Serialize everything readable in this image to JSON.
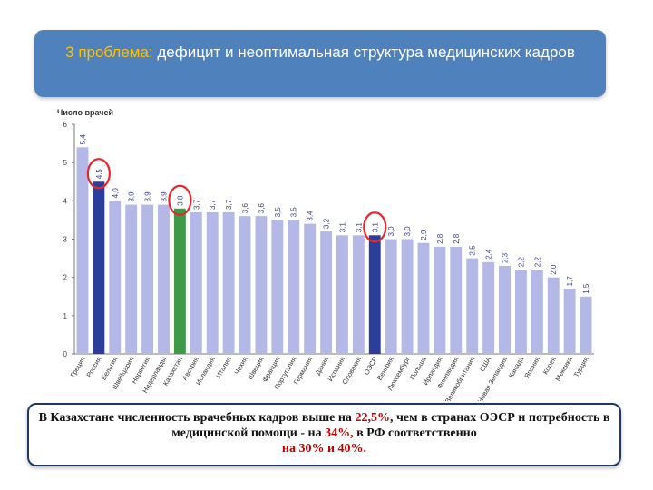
{
  "slide": {
    "title_prefix": "3 проблема:",
    "title_rest": " дефицит и неоптимальная структура медицинских кадров",
    "note": {
      "part1": "В Казахстане численность врачебных кадров выше на ",
      "pct1": "22,5%",
      "part2": ", чем в странах ОЭСР и потребность в медицинской помощи - на ",
      "pct2": "34%,",
      "part3": " в  РФ соответственно",
      "pct3": "на 30% и 40%."
    }
  },
  "chart_data": {
    "type": "bar",
    "title": "Число врачей",
    "ylim": [
      0,
      6
    ],
    "yticks": [
      "0",
      "1",
      "2",
      "3",
      "4",
      "5",
      "6"
    ],
    "grid": false,
    "categories": [
      "Греция",
      "Россия",
      "Бельгия",
      "Швейцария",
      "Норвегия",
      "Нидерланды",
      "Казахстан",
      "Австрия",
      "Исландия",
      "Италия",
      "Чехия",
      "Швеция",
      "Франция",
      "Португалия",
      "Германия",
      "Дания",
      "Испания",
      "Словакия",
      "ОЭСР",
      "Венгрия",
      "Люксембург",
      "Польша",
      "Ирландия",
      "Финляндия",
      "Великобритания",
      "США",
      "Новая Зеландия",
      "Канада",
      "Япония",
      "Корея",
      "Мексика",
      "Турция"
    ],
    "values": [
      5.4,
      4.5,
      4.0,
      3.9,
      3.9,
      3.9,
      3.8,
      3.7,
      3.7,
      3.7,
      3.6,
      3.6,
      3.5,
      3.5,
      3.4,
      3.2,
      3.1,
      3.1,
      3.1,
      3.0,
      3.0,
      2.9,
      2.8,
      2.8,
      2.5,
      2.4,
      2.3,
      2.2,
      2.2,
      2.0,
      1.7,
      1.5
    ],
    "value_labels": [
      "5,4",
      "4,5",
      "4,0",
      "3,9",
      "3,9",
      "3,9",
      "3,8",
      "3,7",
      "3,7",
      "3,7",
      "3,6",
      "3,6",
      "3,5",
      "3,5",
      "3,4",
      "3,2",
      "3,1",
      "3,1",
      "3,1",
      "3,0",
      "3,0",
      "2,9",
      "2,8",
      "2,8",
      "2,5",
      "2,4",
      "2,3",
      "2,2",
      "2,2",
      "2,0",
      "1,7",
      "1,5"
    ],
    "colors": {
      "default": "#b4b8e6",
      "russia": "#2b3e9c",
      "kazakhstan": "#3f9a48",
      "oecd": "#2b3e9c",
      "circle": "#e8262b"
    },
    "highlight": {
      "Россия": "russia",
      "Казахстан": "kazakhstan",
      "ОЭСР": "oecd"
    },
    "circled": [
      "Россия",
      "Казахстан",
      "ОЭСР"
    ]
  }
}
